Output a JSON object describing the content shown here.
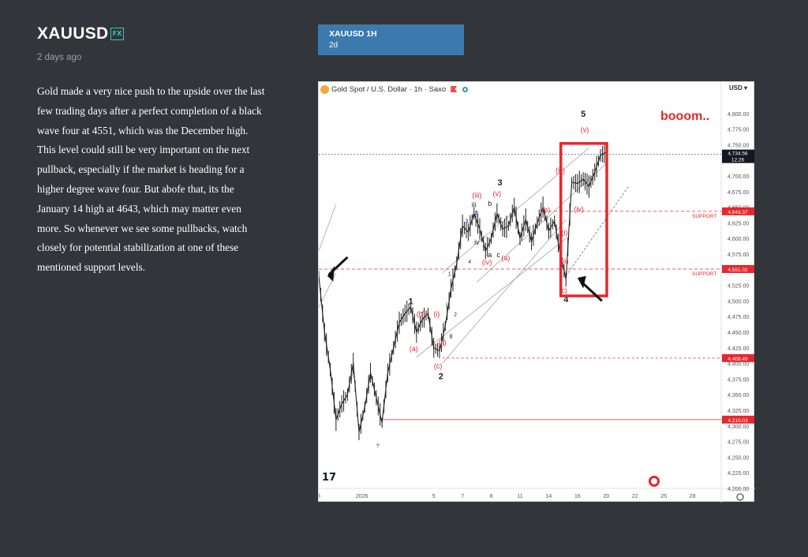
{
  "post": {
    "title": "XAUUSD",
    "badge": "FX",
    "date": "2 days ago",
    "description": "Gold made a very nice push to the upside over the last few trading days after a perfect completion of a black wave four at 4551, which was the December high. This level could still be very important on the next pullback, especially if the market is heading for a higher degree wave four. But abofe that, its the January 14 high at 4643, which may matter even more. So whenever we see some pullbacks, watch closely for potential stabilization at one of these mentioned support levels."
  },
  "symbol_card": {
    "symbol": "XAUUSD 1H",
    "timeframe": "2d"
  },
  "chart": {
    "header": "Gold Spot / U.S. Dollar · 1h · Saxo",
    "currency": "USD",
    "price_badges": {
      "current": "4,734.56",
      "countdown": "12:26",
      "resistance_1": "4,643.37",
      "resistance_2": "4,551.02",
      "support_low": "4,408.49",
      "bottom": "4,310.03"
    },
    "support_labels": [
      "SUPPORT",
      "SUPPORT"
    ],
    "annotation_text": "booom..",
    "colors": {
      "up": "#1f1f1f",
      "red": "#e8262d",
      "blue": "#1b2ea8",
      "channel": "#b5b5b5"
    }
  },
  "chart_data": {
    "type": "line",
    "title": "Gold Spot / U.S. Dollar · 1h · Saxo",
    "ylim": [
      4200,
      4825
    ],
    "y_ticks": [
      "4,800.00",
      "4,775.00",
      "4,750.00",
      "4,725.00",
      "4,700.00",
      "4,675.00",
      "4,650.00",
      "4,625.00",
      "4,600.00",
      "4,575.00",
      "4,550.00",
      "4,525.00",
      "4,500.00",
      "4,475.00",
      "4,450.00",
      "4,425.00",
      "4,400.00",
      "4,375.00",
      "4,350.00",
      "4,325.00",
      "4,300.00",
      "4,275.00",
      "4,250.00",
      "4,225.00",
      "4,200.00"
    ],
    "x_ticks": [
      "8",
      "2026",
      "5",
      "7",
      "8",
      "11",
      "14",
      "16",
      "20",
      "22",
      "25",
      "28"
    ],
    "x_tick_pos": [
      0,
      1.5,
      4,
      5,
      6,
      7,
      8.0,
      9,
      10,
      11,
      12,
      13
    ],
    "x": [
      0,
      0.2,
      0.4,
      0.6,
      0.8,
      1.0,
      1.2,
      1.4,
      1.6,
      1.8,
      2.0,
      2.2,
      2.4,
      2.6,
      2.8,
      3.0,
      3.2,
      3.4,
      3.6,
      3.8,
      4.0,
      4.2,
      4.4,
      4.6,
      4.8,
      5.0,
      5.2,
      5.4,
      5.6,
      5.8,
      6.0,
      6.2,
      6.4,
      6.6,
      6.8,
      7.0,
      7.2,
      7.4,
      7.6,
      7.8,
      8.0,
      8.2,
      8.4,
      8.6,
      8.8,
      9.0,
      9.2,
      9.4,
      9.6,
      9.8,
      10.0
    ],
    "values": [
      4540,
      4450,
      4390,
      4310,
      4335,
      4350,
      4400,
      4290,
      4330,
      4385,
      4345,
      4305,
      4385,
      4425,
      4465,
      4480,
      4490,
      4450,
      4470,
      4480,
      4425,
      4420,
      4460,
      4520,
      4560,
      4620,
      4610,
      4640,
      4615,
      4580,
      4600,
      4640,
      4615,
      4620,
      4650,
      4600,
      4630,
      4595,
      4625,
      4650,
      4612,
      4628,
      4575,
      4535,
      4690,
      4688,
      4695,
      4683,
      4706,
      4733,
      4738
    ],
    "wave_labels": [
      {
        "t": "1",
        "x": 3.2,
        "y": 4495,
        "c": "black"
      },
      {
        "t": "2",
        "x": 4.25,
        "y": 4375,
        "c": "black"
      },
      {
        "t": "3",
        "x": 6.3,
        "y": 4685,
        "c": "black"
      },
      {
        "t": "4",
        "x": 8.6,
        "y": 4498,
        "c": "black"
      },
      {
        "t": "5",
        "x": 9.2,
        "y": 4795,
        "c": "black"
      },
      {
        "t": "(a)",
        "x": 3.3,
        "y": 4420,
        "c": "red"
      },
      {
        "t": "(b)",
        "x": 3.55,
        "y": 4475,
        "c": "red"
      },
      {
        "t": "(c)",
        "x": 4.15,
        "y": 4392,
        "c": "red"
      },
      {
        "t": "(i)",
        "x": 4.1,
        "y": 4475,
        "c": "red"
      },
      {
        "t": "(ii)",
        "x": 4.3,
        "y": 4430,
        "c": "red"
      },
      {
        "t": "(iii)",
        "x": 5.5,
        "y": 4665,
        "c": "red"
      },
      {
        "t": "(iv)",
        "x": 5.85,
        "y": 4558,
        "c": "red"
      },
      {
        "t": "(v)",
        "x": 6.2,
        "y": 4668,
        "c": "red"
      },
      {
        "t": "(a)",
        "x": 6.5,
        "y": 4565,
        "c": "red"
      },
      {
        "t": "(b)",
        "x": 7.9,
        "y": 4642,
        "c": "red"
      },
      {
        "t": "(c)",
        "x": 8.5,
        "y": 4513,
        "c": "red"
      },
      {
        "t": "(i)",
        "x": 8.55,
        "y": 4605,
        "c": "red"
      },
      {
        "t": "(ii)",
        "x": 8.55,
        "y": 4560,
        "c": "red"
      },
      {
        "t": "(iii)",
        "x": 8.4,
        "y": 4705,
        "c": "red"
      },
      {
        "t": "(iv)",
        "x": 9.05,
        "y": 4643,
        "c": "red"
      },
      {
        "t": "(v)",
        "x": 9.25,
        "y": 4770,
        "c": "red"
      },
      {
        "t": "i",
        "x": 4.45,
        "y": 4490,
        "c": "black"
      },
      {
        "t": "ii",
        "x": 4.6,
        "y": 4440,
        "c": "black"
      },
      {
        "t": "iii",
        "x": 5.4,
        "y": 4650,
        "c": "black"
      },
      {
        "t": "iv",
        "x": 5.5,
        "y": 4590,
        "c": "black"
      },
      {
        "t": "a",
        "x": 5.95,
        "y": 4570,
        "c": "black"
      },
      {
        "t": "b",
        "x": 5.95,
        "y": 4652,
        "c": "black"
      },
      {
        "t": "c",
        "x": 6.25,
        "y": 4570,
        "c": "black"
      },
      {
        "t": "?",
        "x": 1.2,
        "y": 4376,
        "c": "blue"
      },
      {
        "t": "?",
        "x": 2.05,
        "y": 4265,
        "c": "blue"
      },
      {
        "t": "1",
        "x": 4.55,
        "y": 4540,
        "c": "blue"
      },
      {
        "t": "2",
        "x": 4.75,
        "y": 4475,
        "c": "blue"
      },
      {
        "t": "3",
        "x": 5.15,
        "y": 4625,
        "c": "blue"
      },
      {
        "t": "4",
        "x": 5.25,
        "y": 4560,
        "c": "blue"
      },
      {
        "t": "5",
        "x": 5.5,
        "y": 4638,
        "c": "blue"
      }
    ],
    "horizontal_levels": [
      4643.37,
      4551.02,
      4408.49,
      4310.03,
      4734.56
    ]
  }
}
